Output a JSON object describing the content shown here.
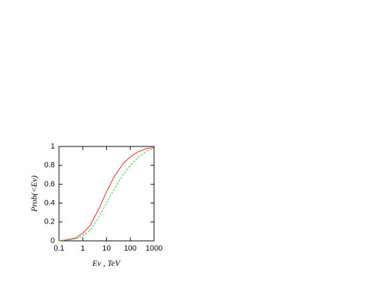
{
  "chart_data": {
    "type": "line",
    "x_label": "Eν , TeV",
    "y_label": "Prob(<Eν)",
    "x": [
      0.1,
      0.2,
      0.5,
      1,
      2,
      5,
      10,
      20,
      50,
      100,
      200,
      500,
      1000
    ],
    "series": [
      {
        "color": "#e41a1c",
        "style": "solid",
        "values": [
          0,
          0.01,
          0.03,
          0.08,
          0.16,
          0.35,
          0.52,
          0.67,
          0.82,
          0.89,
          0.94,
          0.98,
          0.99
        ]
      },
      {
        "color": "#2ecc40",
        "style": "dashed",
        "values": [
          0,
          0.005,
          0.02,
          0.05,
          0.11,
          0.26,
          0.4,
          0.54,
          0.7,
          0.8,
          0.88,
          0.95,
          0.98
        ]
      }
    ],
    "xlog": true,
    "xlim": [
      0.1,
      1000
    ],
    "xticks": [
      0.1,
      1,
      10,
      100,
      1000
    ],
    "ylim": [
      0,
      1
    ],
    "yticks": [
      0,
      0.2,
      0.4,
      0.6,
      0.8,
      1
    ],
    "grid": false
  }
}
